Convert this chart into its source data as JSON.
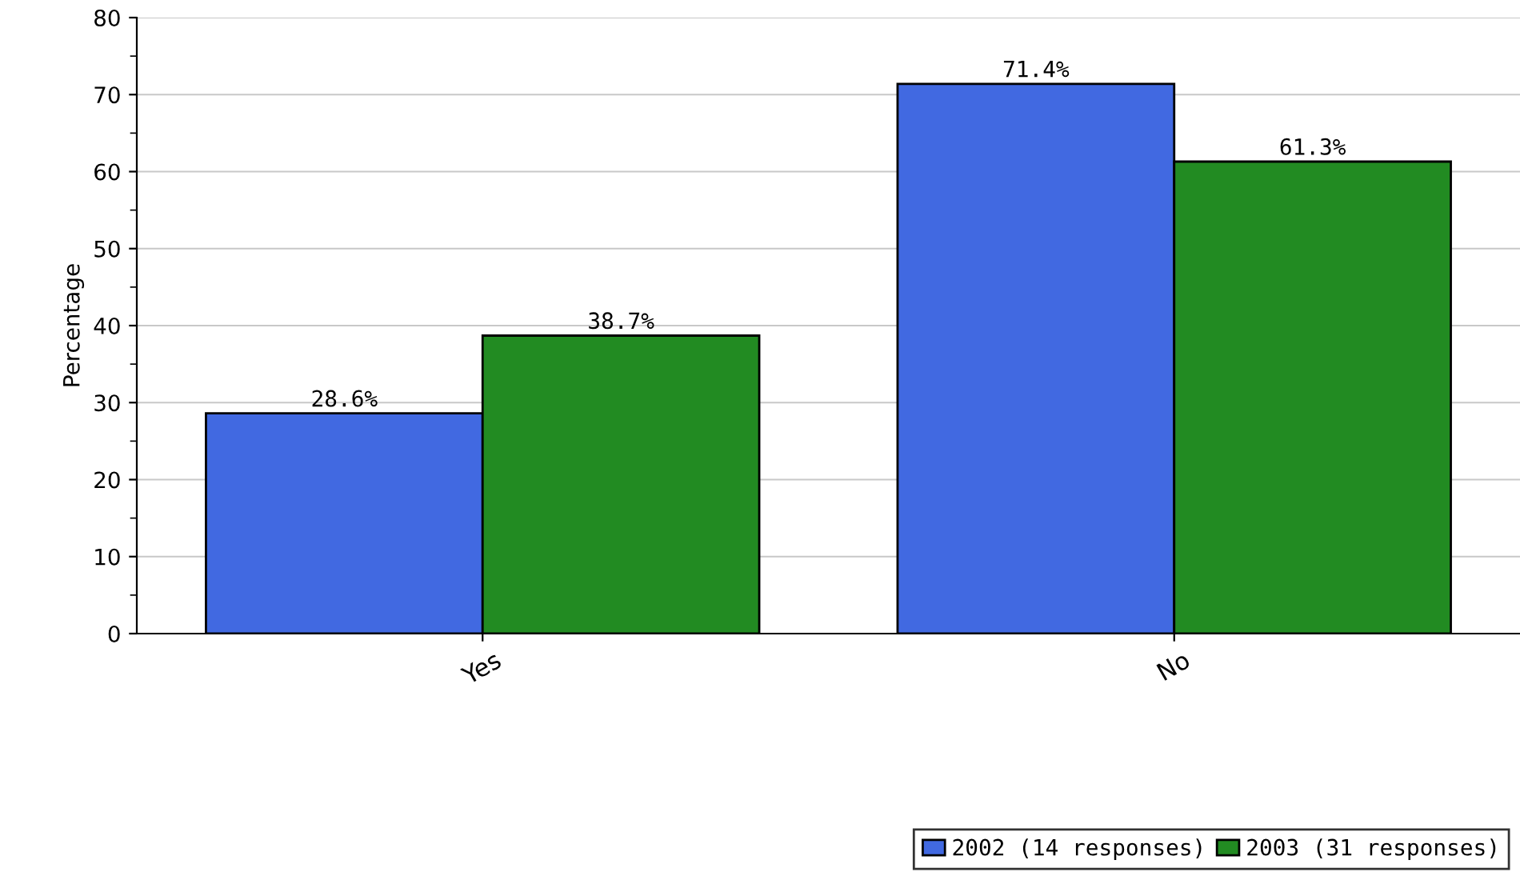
{
  "chart_data": {
    "type": "bar",
    "ylabel": "Percentage",
    "categories": [
      "Yes",
      "No"
    ],
    "series": [
      {
        "name": "2002 (14 responses)",
        "color": "#4169e1",
        "values": [
          28.6,
          71.4
        ],
        "value_labels": [
          "28.6%",
          "71.4%"
        ]
      },
      {
        "name": "2003 (31 responses)",
        "color": "#228b22",
        "values": [
          38.7,
          61.3
        ],
        "value_labels": [
          "38.7%",
          "61.3%"
        ]
      }
    ],
    "ylim": [
      0,
      80
    ],
    "yticks": [
      0,
      {
        "value": 5,
        "label": null
      },
      10,
      {
        "value": 15,
        "label": null
      },
      20,
      {
        "value": 25,
        "label": null
      },
      30,
      {
        "value": 35,
        "label": null
      },
      40,
      {
        "value": 45,
        "label": null
      },
      50,
      {
        "value": 55,
        "label": null
      },
      60,
      {
        "value": 65,
        "label": null
      },
      70,
      {
        "value": 75,
        "label": null
      },
      80
    ],
    "grid": "y",
    "legend": "bottom right"
  }
}
